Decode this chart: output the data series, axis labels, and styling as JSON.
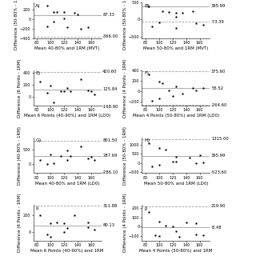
{
  "panels": [
    {
      "label": "A)",
      "xlabel": "Mean 40-80% and 1RM (MVT)",
      "ylabel": "Difference (50-80% - 1RM)",
      "mean_line": 87.33,
      "upper_line": null,
      "lower_line": -366.0,
      "ylim": [
        -400,
        350
      ],
      "points_x": [
        95,
        105,
        110,
        120,
        135,
        140,
        120,
        105,
        95,
        125,
        145,
        155
      ],
      "points_y": [
        290,
        145,
        155,
        150,
        140,
        100,
        10,
        -50,
        -145,
        -170,
        -200,
        -175
      ]
    },
    {
      "label": "B)",
      "xlabel": "Mean 50-80% and 1RM (MVT)",
      "ylabel": "Difference (50-80% - 1RM)",
      "mean_line": 395.99,
      "upper_line": null,
      "lower_line": -73.39,
      "ylim": [
        -550,
        500
      ],
      "points_x": [
        85,
        105,
        115,
        125,
        135,
        150,
        125,
        100,
        90,
        125,
        165,
        155
      ],
      "points_y": [
        390,
        250,
        210,
        205,
        200,
        250,
        90,
        -90,
        -200,
        -250,
        -155,
        -110
      ]
    },
    {
      "label": "E)",
      "xlabel": "Mean 6 Points (40-90%) and 1RM (LD0)",
      "ylabel": "Difference (6 Points - 1RM)",
      "mean_line": 125.84,
      "upper_line": 420.6,
      "lower_line": -168.9,
      "ylim": [
        -150,
        450
      ],
      "points_x": [
        85,
        100,
        115,
        120,
        145,
        160,
        125,
        105,
        95,
        130,
        155,
        165
      ],
      "points_y": [
        250,
        185,
        95,
        100,
        295,
        90,
        145,
        -100,
        65,
        95,
        105,
        35
      ]
    },
    {
      "label": "F)",
      "xlabel": "Mean 4 Points (50-80%) and 1RM (LD0)",
      "ylabel": "Difference (4 Points - 1RM)",
      "mean_line": 55.52,
      "upper_line": 375.6,
      "lower_line": -264.6,
      "ylim": [
        -280,
        400
      ],
      "points_x": [
        85,
        100,
        105,
        115,
        135,
        150,
        120,
        100,
        90,
        125,
        165,
        155
      ],
      "points_y": [
        310,
        185,
        155,
        5,
        -45,
        55,
        -90,
        -140,
        -190,
        80,
        50,
        5
      ]
    },
    {
      "label": "G)",
      "xlabel": "Mean 40-80% and 1RM (LD0)",
      "ylabel": "Difference (40-80% - 1RM)",
      "mean_line": 287.69,
      "upper_line": 801.5,
      "lower_line": -286.1,
      "ylim": [
        -300,
        900
      ],
      "points_x": [
        85,
        100,
        115,
        125,
        145,
        160,
        125,
        105,
        95,
        130,
        155,
        165
      ],
      "points_y": [
        155,
        345,
        290,
        475,
        610,
        250,
        145,
        25,
        5,
        265,
        195,
        150
      ]
    },
    {
      "label": "H)",
      "xlabel": "Mean 50-80% and 1RM (LD0)",
      "ylabel": "Difference (50-80% - 1RM)",
      "mean_line": 395.99,
      "upper_line": 1315.0,
      "lower_line": -523.6,
      "ylim": [
        -550,
        1400
      ],
      "points_x": [
        85,
        100,
        110,
        125,
        145,
        160,
        120,
        100,
        90,
        125,
        165,
        155
      ],
      "points_y": [
        1100,
        810,
        720,
        355,
        310,
        420,
        95,
        -95,
        -195,
        100,
        55,
        5
      ]
    },
    {
      "label": "I)",
      "xlabel": "Mean 6 Points (40-90%) and 1RM",
      "ylabel": "Difference (6 Points - 1RM)",
      "mean_line": 80.13,
      "upper_line": 311.88,
      "lower_line": null,
      "ylim": [
        -100,
        320
      ],
      "points_x": [
        85,
        100,
        110,
        120,
        135,
        155,
        120,
        100,
        95,
        125,
        155,
        165
      ],
      "points_y": [
        205,
        110,
        120,
        110,
        200,
        120,
        5,
        -50,
        -25,
        50,
        55,
        35
      ]
    },
    {
      "label": "J)",
      "xlabel": "Mean 4 Points (50-80%) and 1RM",
      "ylabel": "Difference (4 Points - 1RM)",
      "mean_line": -8.48,
      "upper_line": 219.9,
      "lower_line": null,
      "ylim": [
        -150,
        230
      ],
      "points_x": [
        85,
        100,
        110,
        120,
        140,
        155,
        125,
        100,
        95,
        130,
        165,
        155
      ],
      "points_y": [
        155,
        50,
        10,
        5,
        45,
        35,
        -45,
        -100,
        -95,
        -110,
        -95,
        -80
      ]
    }
  ],
  "fig_bg": "#ffffff",
  "axes_bg": "#ffffff",
  "line_color": "#888888",
  "dot_color": "#111111",
  "dot_size": 3,
  "label_fontsize": 4.0,
  "tick_fontsize": 3.5,
  "annot_fontsize": 3.8
}
